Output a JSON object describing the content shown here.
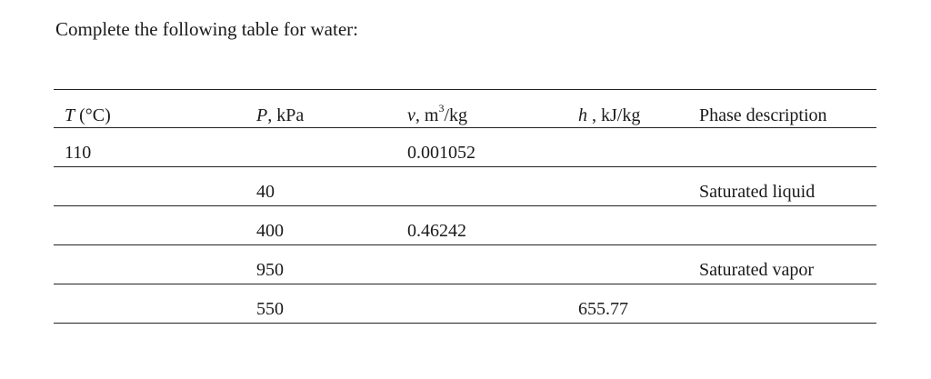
{
  "prompt": "Complete the following table for water:",
  "table": {
    "headers": {
      "t_var": "T",
      "t_unit": " (°C)",
      "p_var": "P",
      "p_unit": ", kPa",
      "v_var": "v",
      "v_unit_pre": ", m",
      "v_unit_sup": "3",
      "v_unit_post": "/kg",
      "h_var": "h",
      "h_unit": " , kJ/kg",
      "phase": "Phase description"
    },
    "rows": [
      {
        "T": "110",
        "P": "",
        "v": "0.001052",
        "h": "",
        "phase": ""
      },
      {
        "T": "",
        "P": "40",
        "v": "",
        "h": "",
        "phase": "Saturated liquid"
      },
      {
        "T": "",
        "P": "400",
        "v": "0.46242",
        "h": "",
        "phase": ""
      },
      {
        "T": "",
        "P": "950",
        "v": "",
        "h": "",
        "phase": "Saturated vapor"
      },
      {
        "T": "",
        "P": "550",
        "v": "",
        "h": "655.77",
        "phase": ""
      }
    ]
  }
}
